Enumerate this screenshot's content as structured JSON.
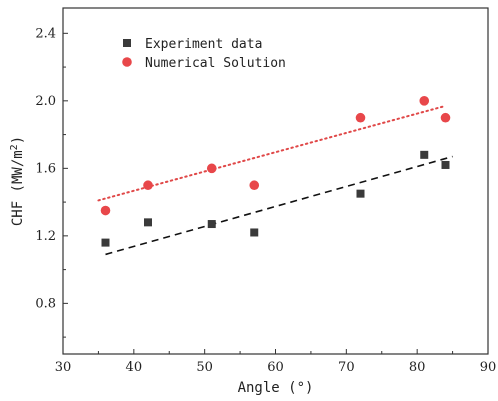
{
  "chart_data": {
    "type": "scatter",
    "xlabel": "Angle (°)",
    "ylabel": "CHF (MW/m²)",
    "ylabel_parts": {
      "prefix": "CHF (MW/m",
      "sup": "2",
      "suffix": ")"
    },
    "xlim": [
      30,
      90
    ],
    "ylim": [
      0.5,
      2.55
    ],
    "xticks": [
      30,
      40,
      50,
      60,
      70,
      80,
      90
    ],
    "yticks": [
      0.8,
      1.2,
      1.6,
      2.0,
      2.4
    ],
    "ytick_labels": [
      "0.8",
      "1.2",
      "1.6",
      "2.0",
      "2.4"
    ],
    "grid": false,
    "legend_position": "top-left",
    "series": [
      {
        "name": "Experiment data",
        "marker": "square",
        "color": "#3a3a3a",
        "x": [
          36,
          42,
          51,
          57,
          72,
          81,
          84
        ],
        "y": [
          1.16,
          1.28,
          1.27,
          1.22,
          1.45,
          1.68,
          1.62
        ],
        "fit": {
          "style": "dashed",
          "color": "#111111",
          "x": [
            36,
            85
          ],
          "y": [
            1.09,
            1.67
          ]
        }
      },
      {
        "name": "Numerical Solution",
        "marker": "circle",
        "color": "#e8474a",
        "x": [
          36,
          42,
          51,
          57,
          72,
          81,
          84
        ],
        "y": [
          1.35,
          1.5,
          1.6,
          1.5,
          1.9,
          2.0,
          1.9
        ],
        "fit": {
          "style": "dotted",
          "color": "#e04848",
          "x": [
            35,
            84
          ],
          "y": [
            1.41,
            1.97
          ]
        }
      }
    ]
  }
}
